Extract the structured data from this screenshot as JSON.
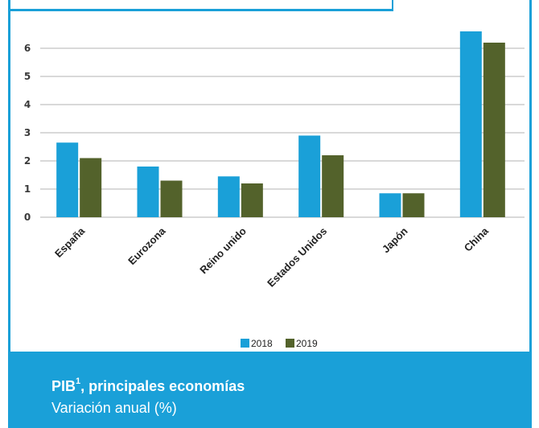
{
  "chart_data": {
    "type": "bar",
    "categories": [
      "España",
      "Eurozona",
      "Reino unido",
      "Estados Unidos",
      "Japón",
      "China"
    ],
    "series": [
      {
        "name": "2018",
        "values": [
          2.65,
          1.8,
          1.45,
          2.9,
          0.85,
          6.6
        ],
        "color": "#1aa0d8"
      },
      {
        "name": "2019",
        "values": [
          2.1,
          1.3,
          1.2,
          2.2,
          0.85,
          6.2
        ],
        "color": "#53622b"
      }
    ],
    "yticks": [
      0,
      1,
      2,
      3,
      4,
      5,
      6
    ],
    "ylim": [
      0,
      7
    ],
    "grid": true,
    "legend": "bottom-center"
  },
  "footer": {
    "title": "PIB",
    "title_sup": "1",
    "title_rest": ", principales economías",
    "subtitle": "Variación anual (%)"
  },
  "colors": {
    "accent": "#1aa0d8",
    "grid": "#d9d9d9"
  }
}
